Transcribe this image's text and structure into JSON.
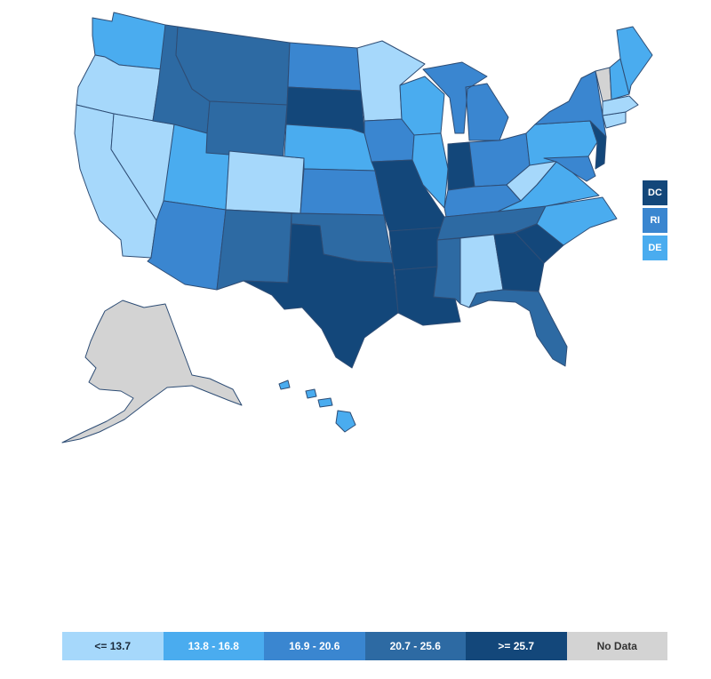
{
  "colors": {
    "bin1": "#a6d8fb",
    "bin2": "#4aacef",
    "bin3": "#3a86d0",
    "bin4": "#2d6aa3",
    "bin5": "#13477a",
    "nodata": "#d3d3d3",
    "border": "#2e4d75"
  },
  "legend": [
    {
      "label": "<= 13.7",
      "color": "#a6d8fb",
      "text_color": "#1b2a3a"
    },
    {
      "label": "13.8 - 16.8",
      "color": "#4aacef",
      "text_color": "#ffffff"
    },
    {
      "label": "16.9 - 20.6",
      "color": "#3a86d0",
      "text_color": "#ffffff"
    },
    {
      "label": "20.7 - 25.6",
      "color": "#2d6aa3",
      "text_color": "#ffffff"
    },
    {
      "label": ">= 25.7",
      "color": "#13477a",
      "text_color": "#ffffff"
    },
    {
      "label": "No Data",
      "color": "#d3d3d3",
      "text_color": "#333333"
    }
  ],
  "small_states": [
    {
      "label": "DC",
      "bin": "bin5"
    },
    {
      "label": "RI",
      "bin": "bin3"
    },
    {
      "label": "DE",
      "bin": "bin2"
    }
  ],
  "states": [
    {
      "name": "WA",
      "bin": "bin2"
    },
    {
      "name": "OR",
      "bin": "bin1"
    },
    {
      "name": "CA",
      "bin": "bin1"
    },
    {
      "name": "NV",
      "bin": "bin1"
    },
    {
      "name": "ID",
      "bin": "bin4"
    },
    {
      "name": "MT",
      "bin": "bin4"
    },
    {
      "name": "WY",
      "bin": "bin4"
    },
    {
      "name": "UT",
      "bin": "bin2"
    },
    {
      "name": "CO",
      "bin": "bin1"
    },
    {
      "name": "AZ",
      "bin": "bin3"
    },
    {
      "name": "NM",
      "bin": "bin4"
    },
    {
      "name": "ND",
      "bin": "bin3"
    },
    {
      "name": "SD",
      "bin": "bin5"
    },
    {
      "name": "NE",
      "bin": "bin2"
    },
    {
      "name": "KS",
      "bin": "bin3"
    },
    {
      "name": "OK",
      "bin": "bin4"
    },
    {
      "name": "TX",
      "bin": "bin5"
    },
    {
      "name": "MN",
      "bin": "bin1"
    },
    {
      "name": "IA",
      "bin": "bin3"
    },
    {
      "name": "MO",
      "bin": "bin5"
    },
    {
      "name": "AR",
      "bin": "bin5"
    },
    {
      "name": "LA",
      "bin": "bin5"
    },
    {
      "name": "WI",
      "bin": "bin2"
    },
    {
      "name": "IL",
      "bin": "bin2"
    },
    {
      "name": "MI",
      "bin": "bin3"
    },
    {
      "name": "IN",
      "bin": "bin5"
    },
    {
      "name": "OH",
      "bin": "bin3"
    },
    {
      "name": "KY",
      "bin": "bin3"
    },
    {
      "name": "TN",
      "bin": "bin4"
    },
    {
      "name": "MS",
      "bin": "bin4"
    },
    {
      "name": "AL",
      "bin": "bin1"
    },
    {
      "name": "GA",
      "bin": "bin5"
    },
    {
      "name": "FL",
      "bin": "bin4"
    },
    {
      "name": "SC",
      "bin": "bin5"
    },
    {
      "name": "NC",
      "bin": "bin2"
    },
    {
      "name": "VA",
      "bin": "bin2"
    },
    {
      "name": "WV",
      "bin": "bin1"
    },
    {
      "name": "PA",
      "bin": "bin2"
    },
    {
      "name": "NY",
      "bin": "bin3"
    },
    {
      "name": "MD",
      "bin": "bin3"
    },
    {
      "name": "NJ",
      "bin": "bin5"
    },
    {
      "name": "CT",
      "bin": "bin1"
    },
    {
      "name": "MA",
      "bin": "bin1"
    },
    {
      "name": "VT",
      "bin": "nodata"
    },
    {
      "name": "NH",
      "bin": "bin2"
    },
    {
      "name": "ME",
      "bin": "bin2"
    },
    {
      "name": "AK",
      "bin": "nodata"
    },
    {
      "name": "HI",
      "bin": "bin2"
    }
  ]
}
